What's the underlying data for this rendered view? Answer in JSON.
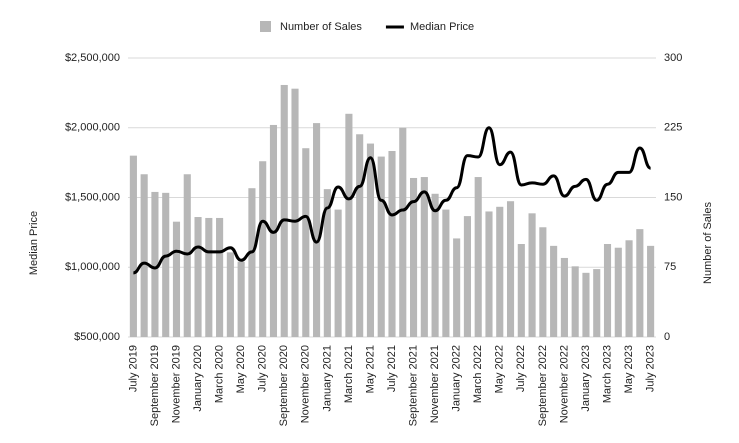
{
  "chart_data": {
    "type": "bar-line",
    "categories": [
      "July 2019",
      null,
      "September 2019",
      null,
      "November 2019",
      null,
      "January 2020",
      null,
      "March 2020",
      null,
      "May 2020",
      null,
      "July 2020",
      null,
      "September 2020",
      null,
      "November 2020",
      null,
      "January 2021",
      null,
      "March 2021",
      null,
      "May 2021",
      null,
      "July 2021",
      null,
      "September 2021",
      null,
      "November 2021",
      null,
      "January 2022",
      null,
      "March 2022",
      null,
      "May 2022",
      null,
      "July 2022",
      null,
      "September 2022",
      null,
      "November 2022",
      null,
      "January 2023",
      null,
      "March 2023",
      null,
      "May 2023",
      null,
      "July 2023"
    ],
    "series": [
      {
        "name": "Number of Sales",
        "color": "#b7b7b7",
        "axis": "y2",
        "kind": "bar",
        "values": [
          195,
          175,
          156,
          155,
          124,
          175,
          129,
          128,
          128,
          91,
          81,
          160,
          189,
          228,
          271,
          267,
          203,
          230,
          159,
          137,
          240,
          218,
          208,
          194,
          200,
          225,
          171,
          172,
          154,
          137,
          106,
          130,
          172,
          135,
          140,
          146,
          100,
          133,
          118,
          98,
          85,
          76,
          69,
          73,
          100,
          96,
          104,
          116,
          98
        ]
      },
      {
        "name": "Median Price",
        "color": "#000000",
        "axis": "y",
        "kind": "line",
        "values": [
          960000,
          1030000,
          995000,
          1080000,
          1115000,
          1095000,
          1145000,
          1110000,
          1110000,
          1140000,
          1050000,
          1110000,
          1330000,
          1250000,
          1340000,
          1330000,
          1365000,
          1180000,
          1425000,
          1575000,
          1490000,
          1580000,
          1785000,
          1480000,
          1375000,
          1410000,
          1470000,
          1540000,
          1405000,
          1480000,
          1570000,
          1800000,
          1790000,
          2000000,
          1735000,
          1825000,
          1590000,
          1605000,
          1595000,
          1655000,
          1510000,
          1580000,
          1630000,
          1480000,
          1595000,
          1680000,
          1680000,
          1855000,
          1710000
        ]
      }
    ],
    "ylabel": "Median Price",
    "y2label": "Number of Sales",
    "ylim": [
      500000,
      2500000
    ],
    "yticks": [
      {
        "value": 500000,
        "label": "$500,000"
      },
      {
        "value": 1000000,
        "label": "$1,000,000"
      },
      {
        "value": 1500000,
        "label": "$1,500,000"
      },
      {
        "value": 2000000,
        "label": "$2,000,000"
      },
      {
        "value": 2500000,
        "label": "$2,500,000"
      }
    ],
    "y2lim": [
      0,
      300
    ],
    "y2ticks": [
      0,
      75,
      150,
      225,
      300
    ],
    "grid": true,
    "legend": "top"
  }
}
